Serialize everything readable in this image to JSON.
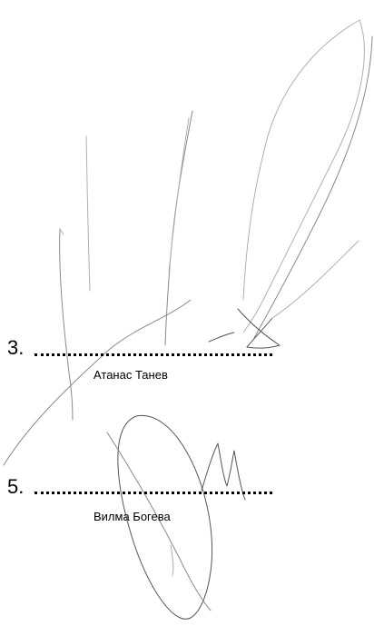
{
  "signatories": [
    {
      "number": "3.",
      "name": "Атанас Танев"
    },
    {
      "number": "5.",
      "name": "Вилма Богева"
    }
  ]
}
